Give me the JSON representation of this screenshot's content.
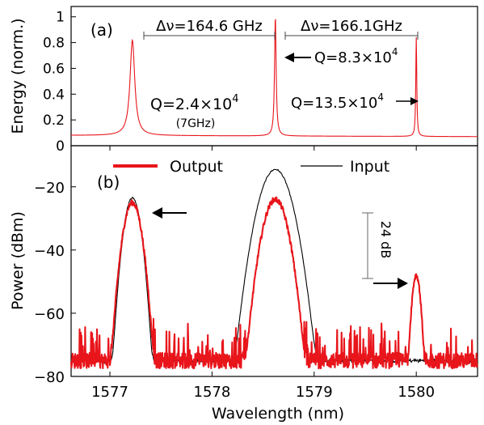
{
  "colors": {
    "output": "#e8151b",
    "input": "#000000",
    "axis": "#000000"
  },
  "chart_data": [
    {
      "panel": "a",
      "type": "line",
      "panel_label": "(a)",
      "xlim": [
        1576.62,
        1580.6
      ],
      "ylim": [
        0,
        1.08
      ],
      "ylabel": "Energy (norm.)",
      "yticks": [
        0,
        0.2,
        0.4,
        0.6,
        0.8,
        1
      ],
      "ytick_labels": [
        "0",
        "0.2",
        "0.4",
        "0.6",
        "0.8",
        "1"
      ],
      "baseline": 0.08,
      "series": [
        {
          "color": "#e8151b",
          "peaks": [
            {
              "x": 1577.22,
              "height": 0.82,
              "hwhm": 0.028
            },
            {
              "x": 1578.62,
              "height": 1.0,
              "hwhm": 0.0095
            },
            {
              "x": 1580.0,
              "height": 0.85,
              "hwhm": 0.0058
            }
          ]
        }
      ],
      "annotations": {
        "spacing_left": {
          "text": "Δν=164.6 GHz",
          "x_from": 1577.22,
          "x_to": 1578.62
        },
        "spacing_right": {
          "text": "Δν=166.1GHz",
          "x_from": 1578.62,
          "x_to": 1580.0
        },
        "q_left": {
          "prefix": "Q=2.4×10",
          "exponent": "4",
          "sub": "(7GHz)"
        },
        "q_mid": {
          "prefix": "Q=8.3×10",
          "exponent": "4"
        },
        "q_right": {
          "prefix": "Q=13.5×10",
          "exponent": "4"
        }
      }
    },
    {
      "panel": "b",
      "type": "line",
      "panel_label": "(b)",
      "xlim": [
        1576.62,
        1580.6
      ],
      "ylim": [
        -80,
        -7
      ],
      "xlabel": "Wavelength (nm)",
      "ylabel": "Power (dBm)",
      "xticks": [
        1577,
        1578,
        1579,
        1580
      ],
      "xtick_labels": [
        "1577",
        "1578",
        "1579",
        "1580"
      ],
      "yticks": [
        -80,
        -60,
        -40,
        -20
      ],
      "ytick_labels": [
        "−80",
        "−60",
        "−40",
        "−20"
      ],
      "legend_position": "top",
      "series": [
        {
          "name": "Output",
          "color": "#e8151b",
          "noise_floor": -75,
          "peaks": [
            {
              "x": 1577.22,
              "level": -25,
              "hw": 0.11
            },
            {
              "x": 1578.62,
              "level": -24,
              "hw": 0.15
            },
            {
              "x": 1580.0,
              "level": -48,
              "hw": 0.055
            }
          ]
        },
        {
          "name": "Input",
          "color": "#000000",
          "noise_floor": -75,
          "peaks": [
            {
              "x": 1577.22,
              "level": -23.5,
              "hw": 0.1
            },
            {
              "x": 1578.62,
              "level": -14.5,
              "hw": 0.19
            }
          ]
        }
      ],
      "annotations": {
        "gain_label": "24 dB",
        "gain_from": -24,
        "gain_to": -48
      }
    }
  ]
}
